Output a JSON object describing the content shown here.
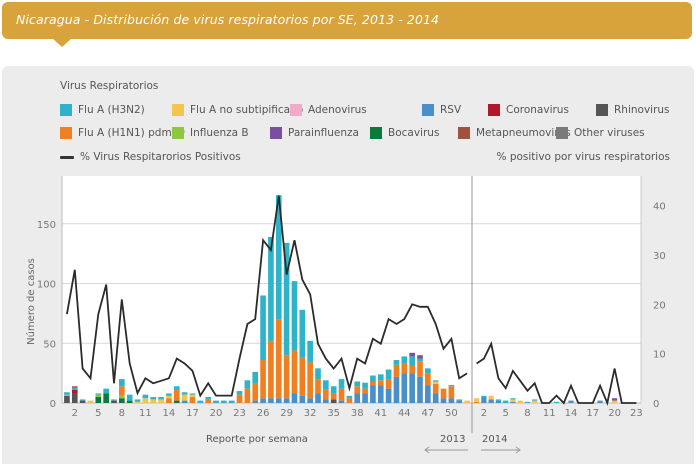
{
  "header": {
    "title": "Nicaragua - Distribución de virus respiratorios por SE, 2013 - 2014"
  },
  "legend": {
    "heading": "Virus Respiratorios",
    "items": [
      {
        "label": "Flu A (H3N2)",
        "color": "#2fb3c8"
      },
      {
        "label": "Flu A no subtipificado",
        "color": "#f2c54e"
      },
      {
        "label": "Adenovirus",
        "color": "#f3a9c8"
      },
      {
        "label": "RSV",
        "color": "#4a90c8"
      },
      {
        "label": "Coronavirus",
        "color": "#b2182b"
      },
      {
        "label": "Rhinovirus",
        "color": "#555555"
      },
      {
        "label": "Flu A (H1N1) pdm09",
        "color": "#f07f22"
      },
      {
        "label": "Influenza B",
        "color": "#8dc63f"
      },
      {
        "label": "Parainfluenza",
        "color": "#7b4fa0"
      },
      {
        "label": "Bocavirus",
        "color": "#0b7a3b"
      },
      {
        "label": "Metapneumovirus",
        "color": "#a0523d"
      },
      {
        "label": "Other viruses",
        "color": "#7a7a7a"
      }
    ],
    "line_label": "% Virus Respitarorios Positivos",
    "right_axis_title": "% positivo por virus respiratorios"
  },
  "chart_data": {
    "type": "bar",
    "title": "Nicaragua - Distribución de virus respiratorios por SE, 2013 - 2014",
    "xlabel": "Reporte por semana",
    "ylabel": "Número de casos",
    "y2label": "% positivo por virus respiratorios",
    "ylim": [
      0,
      190
    ],
    "y2lim": [
      0,
      46
    ],
    "yticks": [
      0,
      50,
      100,
      150
    ],
    "y2ticks": [
      0,
      10,
      20,
      30,
      40
    ],
    "grid": true,
    "legend_position": "top",
    "year_labels": [
      "2013",
      "2014"
    ],
    "x": {
      "2013": [
        1,
        2,
        3,
        4,
        5,
        6,
        7,
        8,
        9,
        10,
        11,
        12,
        13,
        14,
        15,
        16,
        17,
        18,
        19,
        20,
        21,
        22,
        23,
        24,
        25,
        26,
        27,
        28,
        29,
        30,
        31,
        32,
        33,
        34,
        35,
        36,
        37,
        38,
        39,
        40,
        41,
        42,
        43,
        44,
        45,
        46,
        47,
        48,
        49,
        50,
        51,
        52
      ],
      "2014": [
        1,
        2,
        3,
        4,
        5,
        6,
        7,
        8,
        9,
        10,
        11,
        12,
        13,
        14,
        15,
        16,
        17,
        18,
        19,
        20,
        21,
        22,
        23
      ]
    },
    "xtick_labels_2013": [
      "2",
      "5",
      "8",
      "11",
      "14",
      "17",
      "20",
      "23",
      "26",
      "29",
      "32",
      "35",
      "38",
      "41",
      "44",
      "47",
      "50"
    ],
    "xtick_labels_2014": [
      "2",
      "5",
      "8",
      "11",
      "14",
      "17",
      "20",
      "23"
    ],
    "series_order": [
      "RSV",
      "Rhinovirus",
      "Coronavirus",
      "Bocavirus",
      "Other viruses",
      "Influenza B",
      "Flu A (H1N1) pdm09",
      "Flu A no subtipificado",
      "Flu A (H3N2)"
    ],
    "bars_2013": [
      {
        "Rhinovirus": 6,
        "Bocavirus": 0,
        "Other viruses": 0,
        "Flu A (H3N2)": 2,
        "Influenza B": 1
      },
      {
        "Rhinovirus": 8,
        "Coronavirus": 3,
        "Flu A (H3N2)": 2,
        "Metapneumovirus": 1
      },
      {
        "Rhinovirus": 2,
        "Flu A (H3N2)": 1
      },
      {
        "Flu A no subtipificado": 2
      },
      {
        "Bocavirus": 5,
        "Influenza B": 2,
        "Flu A (H3N2)": 1
      },
      {
        "Bocavirus": 8,
        "Flu A (H3N2)": 4
      },
      {
        "Rhinovirus": 2,
        "Flu A (H3N2)": 1
      },
      {
        "Bocavirus": 4,
        "Influenza B": 2,
        "Flu A (H1N1) pdm09": 8,
        "Flu A (H3N2)": 6
      },
      {
        "Bocavirus": 2,
        "Flu A (H3N2)": 5
      },
      {
        "Flu A (H3N2)": 2,
        "Flu A no subtipificado": 1
      },
      {
        "Flu A no subtipificado": 4,
        "Flu A (H3N2)": 3
      },
      {
        "Flu A no subtipificado": 3,
        "Flu A (H3N2)": 2
      },
      {
        "Flu A no subtipificado": 3,
        "Flu A (H3N2)": 2
      },
      {
        "Flu A (H1N1) pdm09": 4,
        "Flu A no subtipificado": 2,
        "Flu A (H3N2)": 2
      },
      {
        "Bocavirus": 2,
        "Flu A (H1N1) pdm09": 9,
        "Flu A (H3N2)": 3
      },
      {
        "RSV": 2,
        "Flu A no subtipificado": 5,
        "Flu A (H3N2)": 2
      },
      {
        "Flu A (H1N1) pdm09": 5,
        "Flu A no subtipificado": 2,
        "Flu A (H3N2)": 1
      },
      {
        "Flu A (H3N2)": 2
      },
      {
        "Flu A (H1N1) pdm09": 3,
        "Flu A (H3N2)": 2
      },
      {
        "Flu A (H3N2)": 2
      },
      {
        "Flu A (H3N2)": 2
      },
      {
        "Flu A (H3N2)": 2
      },
      {
        "Flu A (H1N1) pdm09": 7,
        "Flu A (H3N2)": 3
      },
      {
        "Flu A (H1N1) pdm09": 12,
        "Flu A (H3N2)": 7
      },
      {
        "RSV": 2,
        "Flu A (H1N1) pdm09": 14,
        "Flu A (H3N2)": 10
      },
      {
        "RSV": 4,
        "Flu A (H1N1) pdm09": 32,
        "Flu A (H3N2)": 54
      },
      {
        "RSV": 4,
        "Flu A (H1N1) pdm09": 48,
        "Flu A (H3N2)": 87
      },
      {
        "RSV": 4,
        "Flu A (H1N1) pdm09": 66,
        "Flu A (H3N2)": 104
      },
      {
        "RSV": 4,
        "Flu A (H1N1) pdm09": 36,
        "Flu A (H3N2)": 94
      },
      {
        "RSV": 8,
        "Flu A (H1N1) pdm09": 36,
        "Flu A (H3N2)": 58
      },
      {
        "RSV": 6,
        "Flu A (H1N1) pdm09": 32,
        "Flu A (H3N2)": 40
      },
      {
        "RSV": 4,
        "Flu A (H1N1) pdm09": 30,
        "Flu A (H3N2)": 18
      },
      {
        "RSV": 8,
        "Flu A (H1N1) pdm09": 12,
        "Flu A (H3N2)": 9
      },
      {
        "RSV": 3,
        "Flu A (H1N1) pdm09": 8,
        "Flu A (H3N2)": 8
      },
      {
        "Rhinovirus": 3,
        "Flu A (H1N1) pdm09": 5,
        "Flu A (H3N2)": 6
      },
      {
        "RSV": 2,
        "Flu A (H1N1) pdm09": 10,
        "Flu A (H3N2)": 8
      },
      {
        "Flu A (H1N1) pdm09": 4,
        "Flu A (H3N2)": 2
      },
      {
        "RSV": 8,
        "Flu A (H1N1) pdm09": 6,
        "Flu A (H3N2)": 4
      },
      {
        "RSV": 8,
        "Flu A (H1N1) pdm09": 4,
        "Flu A (H3N2)": 5
      },
      {
        "RSV": 15,
        "Flu A (H1N1) pdm09": 3,
        "Flu A (H3N2)": 5
      },
      {
        "RSV": 15,
        "Flu A (H1N1) pdm09": 4,
        "Flu A (H3N2)": 5
      },
      {
        "RSV": 12,
        "Flu A (H1N1) pdm09": 8,
        "Flu A (H3N2)": 8
      },
      {
        "RSV": 22,
        "Flu A (H1N1) pdm09": 10,
        "Flu A (H3N2)": 4
      },
      {
        "RSV": 25,
        "Flu A (H1N1) pdm09": 8,
        "Flu A (H3N2)": 6
      },
      {
        "RSV": 25,
        "Parainfluenza": 3,
        "Flu A (H1N1) pdm09": 6,
        "Flu A (H3N2)": 8
      },
      {
        "RSV": 22,
        "Parainfluenza": 3,
        "Flu A (H1N1) pdm09": 13,
        "Flu A (H3N2)": 2
      },
      {
        "RSV": 15,
        "Flu A (H1N1) pdm09": 10,
        "Flu A (H3N2)": 4
      },
      {
        "RSV": 8,
        "Flu A no subtipificado": 2,
        "Flu A (H1N1) pdm09": 8,
        "Flu A (H3N2)": 1
      },
      {
        "RSV": 4,
        "Flu A (H1N1) pdm09": 8
      },
      {
        "RSV": 4,
        "Flu A (H1N1) pdm09": 10,
        "Flu A (H3N2)": 1
      },
      {
        "RSV": 2,
        "Flu A (H3N2)": 1
      },
      {
        "Flu A no subtipificado": 2
      }
    ],
    "bars_2014": [
      {
        "Flu A no subtipificado": 3,
        "Flu A (H1N1) pdm09": 1
      },
      {
        "RSV": 5,
        "Flu A (H3N2)": 1
      },
      {
        "RSV": 3,
        "Flu A no subtipificado": 3
      },
      {
        "RSV": 2,
        "Flu A (H3N2)": 1
      },
      {
        "Flu A (H3N2)": 2
      },
      {
        "RSV": 1,
        "Flu A no subtipificado": 2,
        "Flu A (H3N2)": 1
      },
      {
        "Flu A no subtipificado": 2
      },
      {
        "Flu A (H3N2)": 1
      },
      {
        "Flu A no subtipificado": 2,
        "Flu A (H3N2)": 1
      },
      {},
      {},
      {
        "Flu A (H3N2)": 1
      },
      {},
      {
        "RSV": 2
      },
      {},
      {},
      {},
      {
        "RSV": 2
      },
      {},
      {
        "Parainfluenza": 2,
        "Flu A no subtipificado": 2
      },
      {},
      {},
      {}
    ],
    "pct_2013": [
      18,
      27,
      7,
      5,
      18,
      24,
      4,
      21,
      8,
      2,
      5,
      4,
      4.5,
      5,
      9,
      8,
      6.5,
      1.5,
      4,
      1.5,
      1.5,
      1.5,
      9,
      16,
      17,
      33,
      31,
      42,
      26,
      33,
      25,
      22,
      12,
      9,
      7,
      9,
      3,
      9,
      8,
      13,
      12,
      17,
      16,
      17,
      20,
      19.5,
      19.5,
      16,
      11,
      13,
      5,
      6
    ],
    "pct_2014": [
      8,
      9,
      12,
      5,
      3,
      6.5,
      4.5,
      2.5,
      4,
      0,
      0,
      1.5,
      0,
      3.5,
      0,
      0,
      0,
      3.5,
      0,
      7,
      0,
      0,
      0
    ]
  },
  "x_axis_title": "Reporte por semana",
  "y_axis_title": "Número de casos"
}
